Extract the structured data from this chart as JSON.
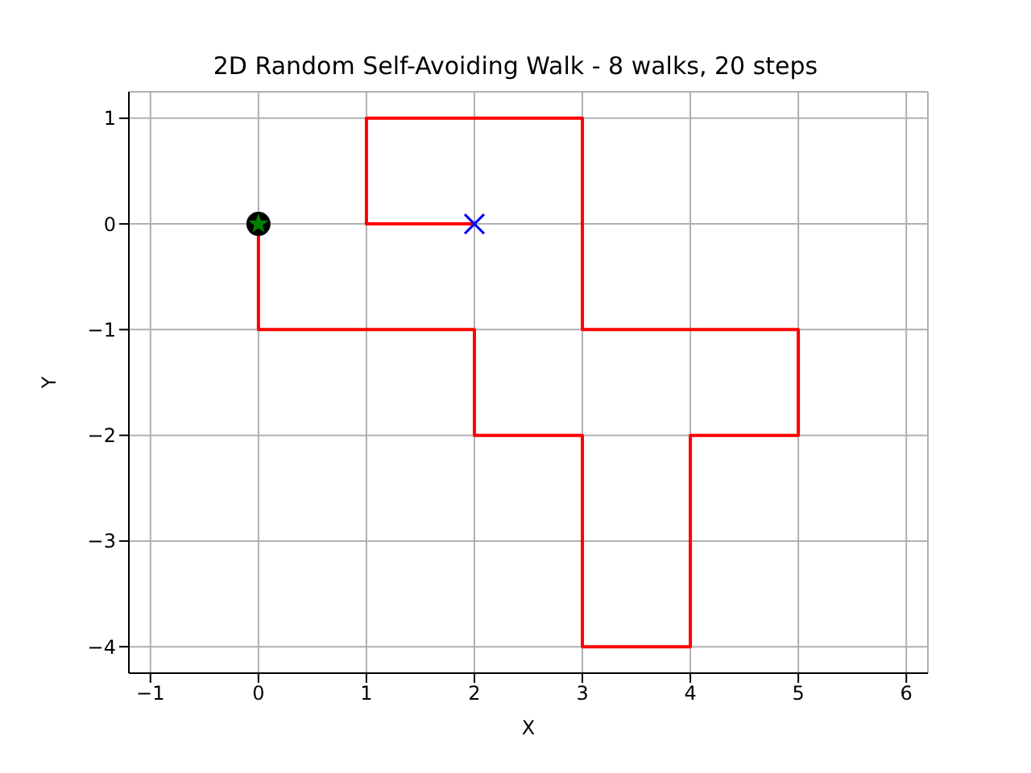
{
  "chart_data": {
    "type": "line",
    "title": "2D Random Self-Avoiding Walk - 8 walks, 20 steps",
    "xlabel": "X",
    "ylabel": "Y",
    "xlim": [
      -1.2,
      6.2
    ],
    "xticks": [
      -1,
      0,
      1,
      2,
      3,
      4,
      5,
      6
    ],
    "ylim": [
      -4.25,
      1.25
    ],
    "yticks": [
      -4,
      -3,
      -2,
      -1,
      0,
      1
    ],
    "grid": true,
    "series": [
      {
        "color": "#ff0000",
        "marker": "none",
        "x": [
          0,
          0,
          1,
          2,
          2,
          3,
          3,
          3,
          4,
          4,
          4,
          5,
          5,
          4,
          3,
          3,
          3,
          2,
          1,
          1,
          2
        ],
        "values": [
          0,
          -1,
          -1,
          -1,
          -2,
          -2,
          -3,
          -4,
          -4,
          -3,
          -2,
          -2,
          -1,
          -1,
          -1,
          0,
          1,
          1,
          1,
          0,
          0
        ]
      },
      {
        "type": "scatter",
        "color": "#000000",
        "marker": "circle",
        "x": [
          0
        ],
        "values": [
          0
        ]
      },
      {
        "type": "scatter",
        "color": "#008000",
        "marker": "star",
        "x": [
          0
        ],
        "values": [
          0
        ]
      },
      {
        "type": "scatter",
        "color": "#0000ff",
        "marker": "cross",
        "x": [
          2
        ],
        "values": [
          0
        ]
      }
    ]
  }
}
